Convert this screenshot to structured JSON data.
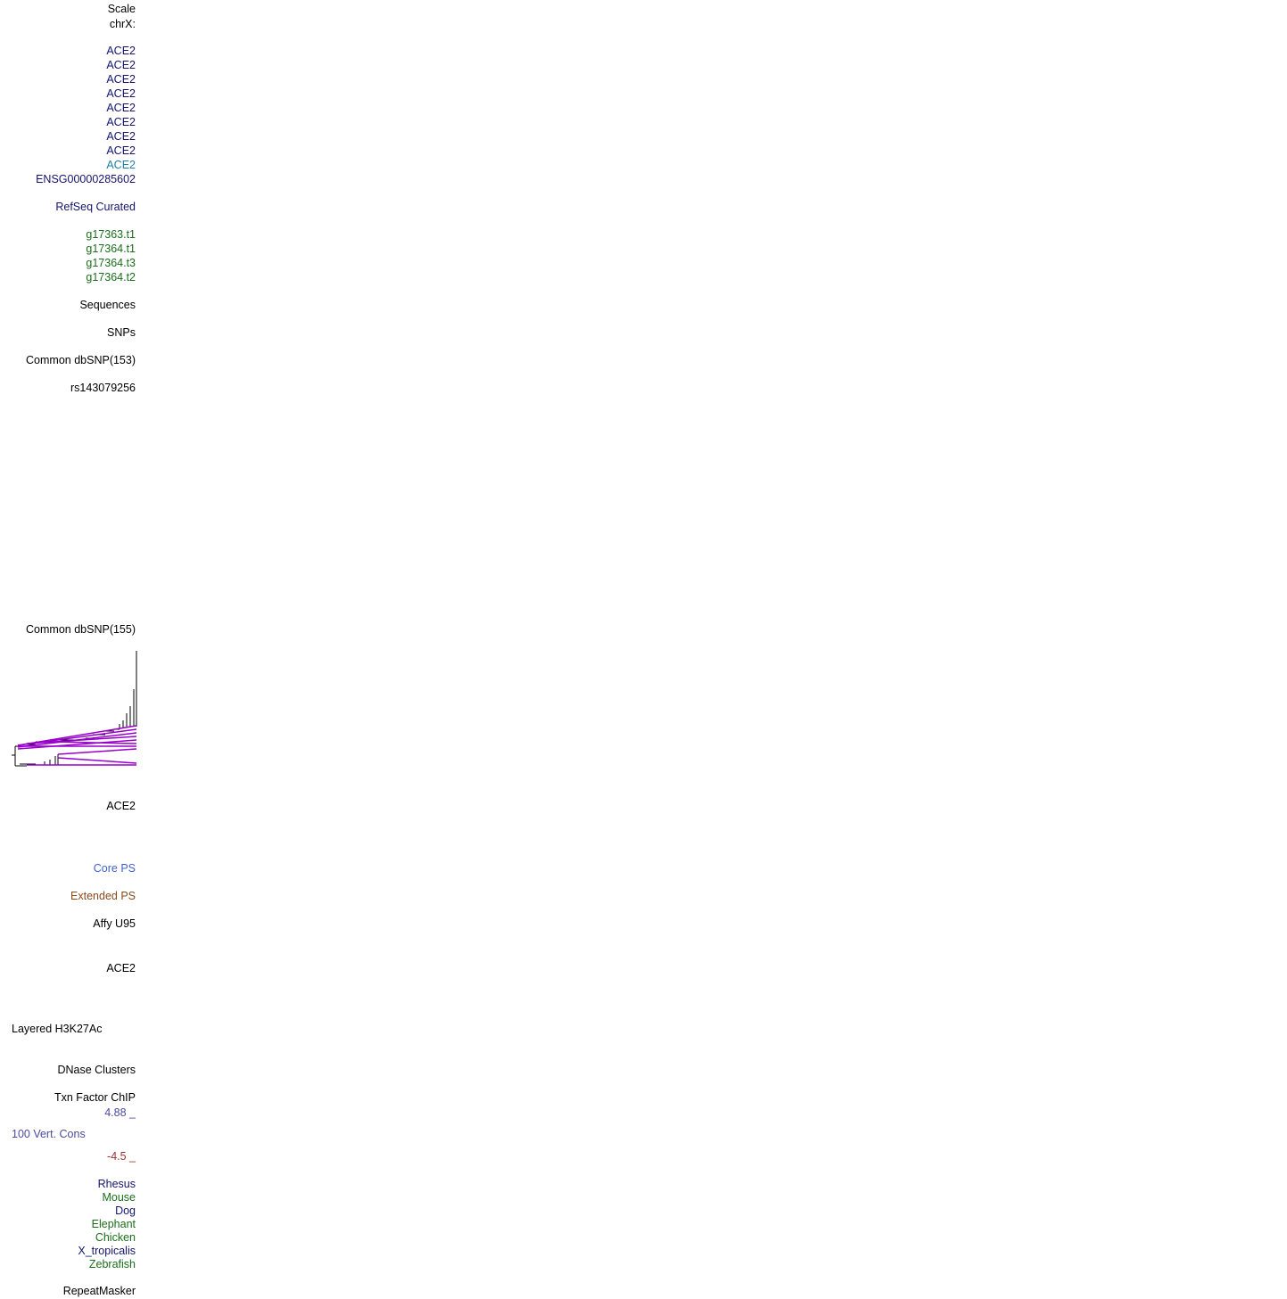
{
  "labels": [
    "Scale",
    "chrX:",
    "ACE2",
    "ACE2",
    "ACE2",
    "ACE2",
    "ACE2",
    "ACE2",
    "ACE2",
    "ACE2",
    "ACE2",
    "ENSG00000285602",
    "RefSeq Curated",
    "g17363.t1",
    "g17364.t1",
    "g17364.t3",
    "g17364.t2",
    "Sequences",
    "SNPs",
    "Common dbSNP(153)",
    "rs143079256",
    "Common dbSNP(155)",
    "ACE2",
    "Core PS",
    "Extended PS",
    "Affy U95",
    "ACE2",
    "Layered H3K27Ac",
    "DNase Clusters",
    "Txn Factor ChIP",
    "4.88 _",
    "100 Vert. Cons",
    "-4.5 _",
    "Rhesus",
    "Mouse",
    "Dog",
    "Elephant",
    "Chicken",
    "X_tropicalis",
    "Zebrafish",
    "RepeatMasker"
  ]
}
